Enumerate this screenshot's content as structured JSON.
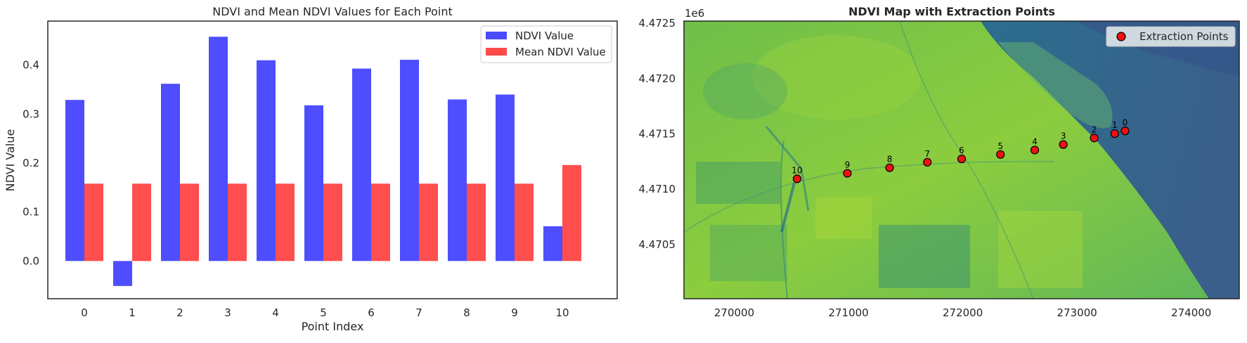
{
  "chart_data": [
    {
      "type": "bar",
      "title": "NDVI and Mean NDVI Values for Each Point",
      "xlabel": "Point Index",
      "ylabel": "NDVI Value",
      "categories": [
        "0",
        "1",
        "2",
        "3",
        "4",
        "5",
        "6",
        "7",
        "8",
        "9",
        "10"
      ],
      "series": [
        {
          "name": "NDVI Value",
          "color": "#4a4aff",
          "values": [
            0.329,
            -0.051,
            0.362,
            0.458,
            0.41,
            0.318,
            0.393,
            0.411,
            0.33,
            0.34,
            0.071
          ]
        },
        {
          "name": "Mean NDVI Value",
          "color": "#ff4a4a",
          "values": [
            0.158,
            0.158,
            0.158,
            0.158,
            0.158,
            0.158,
            0.158,
            0.158,
            0.158,
            0.158,
            0.196
          ]
        }
      ],
      "ylim": [
        -0.077,
        0.49
      ],
      "yticks": [
        0.0,
        0.1,
        0.2,
        0.3,
        0.4
      ],
      "ytick_labels": [
        "0.0",
        "0.1",
        "0.2",
        "0.3",
        "0.4"
      ],
      "grid": false,
      "legend": "top-right"
    },
    {
      "type": "scatter",
      "title": "NDVI Map with Extraction Points",
      "background": "NDVI raster",
      "colormap": "viridis",
      "y_offset_label": "1e6",
      "xlim": [
        269560,
        274420
      ],
      "ylim": [
        4470010,
        4472520
      ],
      "xticks": [
        270000,
        271000,
        272000,
        273000,
        274000
      ],
      "xtick_labels": [
        "270000",
        "271000",
        "272000",
        "273000",
        "274000"
      ],
      "yticks": [
        4470500,
        4471000,
        4471500,
        4472000,
        4472500
      ],
      "ytick_labels": [
        "4.4705",
        "4.4710",
        "4.4715",
        "4.4720",
        "4.4725"
      ],
      "series": [
        {
          "name": "Extraction Points",
          "color": "#ee1111",
          "points": [
            {
              "label": "0",
              "x": 273420,
              "y": 4471527
            },
            {
              "label": "1",
              "x": 273330,
              "y": 4471503
            },
            {
              "label": "2",
              "x": 273150,
              "y": 4471463
            },
            {
              "label": "3",
              "x": 272880,
              "y": 4471404
            },
            {
              "label": "4",
              "x": 272630,
              "y": 4471354
            },
            {
              "label": "5",
              "x": 272330,
              "y": 4471314
            },
            {
              "label": "6",
              "x": 271990,
              "y": 4471274
            },
            {
              "label": "7",
              "x": 271690,
              "y": 4471244
            },
            {
              "label": "8",
              "x": 271360,
              "y": 4471194
            },
            {
              "label": "9",
              "x": 270990,
              "y": 4471144
            },
            {
              "label": "10",
              "x": 270550,
              "y": 4471094
            }
          ]
        }
      ],
      "legend": "top-right"
    }
  ]
}
